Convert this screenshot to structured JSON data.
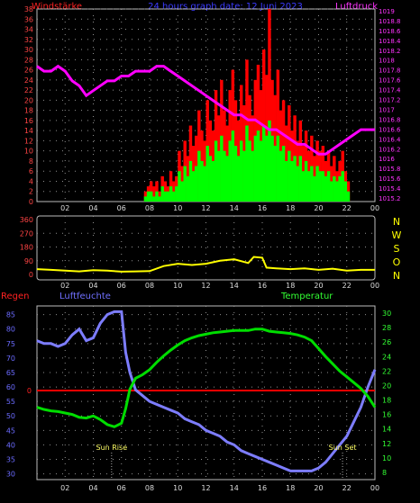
{
  "header": {
    "left_label": "Windstärke",
    "title": "24 hours graph date: 12 Juni 2023",
    "right_label": "Luftdruck"
  },
  "colors": {
    "background": "#000000",
    "grid": "#8f8f8f",
    "wind_gust": "#ff0000",
    "wind_avg": "#00ff00",
    "pressure": "#ff00ff",
    "direction": "#ffff00",
    "humidity": "#7d7dff",
    "temperature": "#00dd00",
    "rain": "#ff0000",
    "left_axis": "#ff4444",
    "humidity_axis": "#6b6bff",
    "temp_axis": "#33ff33",
    "dir_axis": "#ffff00",
    "pressure_axis": "#ff33ff"
  },
  "time_ticks": [
    "02",
    "04",
    "06",
    "08",
    "10",
    "12",
    "14",
    "16",
    "18",
    "20",
    "22",
    "00"
  ],
  "wind_axis_ticks": [
    "0",
    "2",
    "4",
    "6",
    "8",
    "10",
    "12",
    "14",
    "16",
    "18",
    "20",
    "22",
    "24",
    "26",
    "28",
    "30",
    "32",
    "34",
    "36",
    "38"
  ],
  "pressure_axis_ticks": [
    "1015.2",
    "1015.4",
    "1015.6",
    "1015.8",
    "1016",
    "1016.2",
    "1016.4",
    "1016.6",
    "1016.8",
    "1017",
    "1017.2",
    "1017.4",
    "1017.6",
    "1017.8",
    "1018",
    "1018.2",
    "1018.4",
    "1018.6",
    "1018.8",
    "1019"
  ],
  "direction_axis_ticks": [
    "0",
    "90",
    "180",
    "270",
    "360"
  ],
  "direction_labels": [
    "N",
    "W",
    "S",
    "O",
    "N"
  ],
  "bottom_panel": {
    "rain_label": "Regen",
    "humidity_label": "Luftfeuchte",
    "temperature_label": "Temperatur",
    "rain_tick": "0",
    "sunrise_label": "Sun Rise",
    "sunset_label": "Sun Set",
    "humidity_ticks": [
      "30",
      "35",
      "40",
      "45",
      "50",
      "55",
      "60",
      "65",
      "70",
      "75",
      "80",
      "85"
    ],
    "temperature_ticks": [
      "8",
      "10",
      "12",
      "14",
      "16",
      "18",
      "20",
      "22",
      "24",
      "26",
      "28",
      "30"
    ]
  },
  "chart_data": [
    {
      "type": "bar",
      "name": "wind",
      "x_unit": "hour",
      "xlim": [
        0,
        24
      ],
      "ylim": [
        0,
        38
      ],
      "gust_points": [
        [
          7.4,
          0
        ],
        [
          7.6,
          2
        ],
        [
          7.8,
          3
        ],
        [
          8.0,
          4
        ],
        [
          8.2,
          3
        ],
        [
          8.4,
          4
        ],
        [
          8.6,
          2
        ],
        [
          8.8,
          5
        ],
        [
          9.0,
          4
        ],
        [
          9.2,
          3
        ],
        [
          9.4,
          6
        ],
        [
          9.6,
          4
        ],
        [
          9.8,
          5
        ],
        [
          10.0,
          10
        ],
        [
          10.2,
          7
        ],
        [
          10.4,
          12
        ],
        [
          10.6,
          9
        ],
        [
          10.8,
          15
        ],
        [
          11.0,
          11
        ],
        [
          11.2,
          13
        ],
        [
          11.4,
          18
        ],
        [
          11.6,
          14
        ],
        [
          11.8,
          12
        ],
        [
          12.0,
          20
        ],
        [
          12.2,
          16
        ],
        [
          12.4,
          14
        ],
        [
          12.6,
          22
        ],
        [
          12.8,
          17
        ],
        [
          13.0,
          24
        ],
        [
          13.2,
          18
        ],
        [
          13.4,
          15
        ],
        [
          13.6,
          22
        ],
        [
          13.8,
          26
        ],
        [
          14.0,
          20
        ],
        [
          14.2,
          16
        ],
        [
          14.4,
          23
        ],
        [
          14.6,
          19
        ],
        [
          14.8,
          28
        ],
        [
          15.0,
          21
        ],
        [
          15.2,
          17
        ],
        [
          15.4,
          24
        ],
        [
          15.6,
          27
        ],
        [
          15.8,
          22
        ],
        [
          16.0,
          30
        ],
        [
          16.2,
          25
        ],
        [
          16.4,
          38
        ],
        [
          16.6,
          24
        ],
        [
          16.8,
          21
        ],
        [
          17.0,
          26
        ],
        [
          17.2,
          18
        ],
        [
          17.4,
          20
        ],
        [
          17.6,
          15
        ],
        [
          17.8,
          19
        ],
        [
          18.0,
          14
        ],
        [
          18.2,
          17
        ],
        [
          18.4,
          12
        ],
        [
          18.6,
          16
        ],
        [
          18.8,
          11
        ],
        [
          19.0,
          14
        ],
        [
          19.2,
          10
        ],
        [
          19.4,
          13
        ],
        [
          19.6,
          9
        ],
        [
          19.8,
          12
        ],
        [
          20.0,
          10
        ],
        [
          20.2,
          11
        ],
        [
          20.4,
          8
        ],
        [
          20.6,
          10
        ],
        [
          20.8,
          7
        ],
        [
          21.0,
          9
        ],
        [
          21.2,
          6
        ],
        [
          21.4,
          8
        ],
        [
          21.6,
          10
        ],
        [
          21.8,
          6
        ],
        [
          22.0,
          4
        ],
        [
          22.2,
          0
        ]
      ],
      "avg_points": [
        [
          7.4,
          0
        ],
        [
          7.6,
          1
        ],
        [
          7.8,
          2
        ],
        [
          8.0,
          2
        ],
        [
          8.2,
          1
        ],
        [
          8.4,
          2
        ],
        [
          8.6,
          1
        ],
        [
          8.8,
          3
        ],
        [
          9.0,
          2
        ],
        [
          9.2,
          2
        ],
        [
          9.4,
          3
        ],
        [
          9.6,
          2
        ],
        [
          9.8,
          3
        ],
        [
          10.0,
          6
        ],
        [
          10.2,
          4
        ],
        [
          10.4,
          7
        ],
        [
          10.6,
          5
        ],
        [
          10.8,
          8
        ],
        [
          11.0,
          6
        ],
        [
          11.2,
          7
        ],
        [
          11.4,
          10
        ],
        [
          11.6,
          8
        ],
        [
          11.8,
          7
        ],
        [
          12.0,
          11
        ],
        [
          12.2,
          9
        ],
        [
          12.4,
          8
        ],
        [
          12.6,
          12
        ],
        [
          12.8,
          10
        ],
        [
          13.0,
          13
        ],
        [
          13.2,
          10
        ],
        [
          13.4,
          9
        ],
        [
          13.6,
          12
        ],
        [
          13.8,
          14
        ],
        [
          14.0,
          11
        ],
        [
          14.2,
          9
        ],
        [
          14.4,
          12
        ],
        [
          14.6,
          10
        ],
        [
          14.8,
          15
        ],
        [
          15.0,
          12
        ],
        [
          15.2,
          10
        ],
        [
          15.4,
          13
        ],
        [
          15.6,
          14
        ],
        [
          15.8,
          12
        ],
        [
          16.0,
          15
        ],
        [
          16.2,
          13
        ],
        [
          16.4,
          16
        ],
        [
          16.6,
          13
        ],
        [
          16.8,
          11
        ],
        [
          17.0,
          13
        ],
        [
          17.2,
          10
        ],
        [
          17.4,
          11
        ],
        [
          17.6,
          8
        ],
        [
          17.8,
          10
        ],
        [
          18.0,
          8
        ],
        [
          18.2,
          9
        ],
        [
          18.4,
          7
        ],
        [
          18.6,
          9
        ],
        [
          18.8,
          6
        ],
        [
          19.0,
          8
        ],
        [
          19.2,
          6
        ],
        [
          19.4,
          7
        ],
        [
          19.6,
          5
        ],
        [
          19.8,
          7
        ],
        [
          20.0,
          6
        ],
        [
          20.2,
          6
        ],
        [
          20.4,
          5
        ],
        [
          20.6,
          6
        ],
        [
          20.8,
          4
        ],
        [
          21.0,
          5
        ],
        [
          21.2,
          4
        ],
        [
          21.4,
          5
        ],
        [
          21.6,
          6
        ],
        [
          21.8,
          4
        ],
        [
          22.0,
          2
        ],
        [
          22.2,
          0
        ]
      ],
      "pressure_ylim": [
        1015.2,
        1019.0
      ],
      "pressure_points": [
        [
          0.0,
          1017.9
        ],
        [
          0.5,
          1017.8
        ],
        [
          1.0,
          1017.8
        ],
        [
          1.5,
          1017.9
        ],
        [
          2.0,
          1017.8
        ],
        [
          2.5,
          1017.6
        ],
        [
          3.0,
          1017.5
        ],
        [
          3.5,
          1017.3
        ],
        [
          4.0,
          1017.4
        ],
        [
          4.5,
          1017.5
        ],
        [
          5.0,
          1017.6
        ],
        [
          5.5,
          1017.6
        ],
        [
          6.0,
          1017.7
        ],
        [
          6.5,
          1017.7
        ],
        [
          7.0,
          1017.8
        ],
        [
          7.5,
          1017.8
        ],
        [
          8.0,
          1017.8
        ],
        [
          8.5,
          1017.9
        ],
        [
          9.0,
          1017.9
        ],
        [
          9.5,
          1017.8
        ],
        [
          10.0,
          1017.7
        ],
        [
          10.5,
          1017.6
        ],
        [
          11.0,
          1017.5
        ],
        [
          11.5,
          1017.4
        ],
        [
          12.0,
          1017.3
        ],
        [
          12.5,
          1017.2
        ],
        [
          13.0,
          1017.1
        ],
        [
          13.5,
          1017.0
        ],
        [
          14.0,
          1016.9
        ],
        [
          14.5,
          1016.9
        ],
        [
          15.0,
          1016.8
        ],
        [
          15.5,
          1016.8
        ],
        [
          16.0,
          1016.7
        ],
        [
          16.5,
          1016.6
        ],
        [
          17.0,
          1016.6
        ],
        [
          17.5,
          1016.5
        ],
        [
          18.0,
          1016.4
        ],
        [
          18.5,
          1016.3
        ],
        [
          19.0,
          1016.3
        ],
        [
          19.5,
          1016.2
        ],
        [
          20.0,
          1016.1
        ],
        [
          20.5,
          1016.1
        ],
        [
          21.0,
          1016.2
        ],
        [
          21.5,
          1016.3
        ],
        [
          22.0,
          1016.4
        ],
        [
          22.5,
          1016.5
        ],
        [
          23.0,
          1016.6
        ],
        [
          23.5,
          1016.6
        ],
        [
          24.0,
          1016.6
        ]
      ]
    },
    {
      "type": "line",
      "name": "wind_direction",
      "ylim": [
        0,
        360
      ],
      "points": [
        [
          0.0,
          35
        ],
        [
          1.0,
          30
        ],
        [
          2.0,
          25
        ],
        [
          3.0,
          20
        ],
        [
          4.0,
          28
        ],
        [
          5.0,
          25
        ],
        [
          6.0,
          18
        ],
        [
          7.0,
          20
        ],
        [
          8.0,
          22
        ],
        [
          9.0,
          55
        ],
        [
          10.0,
          70
        ],
        [
          11.0,
          62
        ],
        [
          12.0,
          70
        ],
        [
          13.0,
          90
        ],
        [
          14.0,
          100
        ],
        [
          15.0,
          75
        ],
        [
          15.4,
          115
        ],
        [
          16.0,
          110
        ],
        [
          16.3,
          45
        ],
        [
          17.0,
          40
        ],
        [
          18.0,
          35
        ],
        [
          19.0,
          40
        ],
        [
          20.0,
          30
        ],
        [
          21.0,
          38
        ],
        [
          22.0,
          25
        ],
        [
          23.0,
          30
        ],
        [
          24.0,
          30
        ]
      ]
    },
    {
      "type": "line",
      "name": "humidity_temperature",
      "humidity_ylim": [
        28,
        88
      ],
      "temperature_ylim": [
        7,
        31
      ],
      "rain_value": 0,
      "sunrise_hour": 5.3,
      "sunset_hour": 21.7,
      "humidity_points": [
        [
          0.0,
          76
        ],
        [
          0.5,
          75
        ],
        [
          1.0,
          75
        ],
        [
          1.5,
          74
        ],
        [
          2.0,
          75
        ],
        [
          2.5,
          78
        ],
        [
          3.0,
          80
        ],
        [
          3.5,
          76
        ],
        [
          4.0,
          77
        ],
        [
          4.5,
          82
        ],
        [
          5.0,
          85
        ],
        [
          5.5,
          86
        ],
        [
          6.0,
          86
        ],
        [
          6.3,
          72
        ],
        [
          6.6,
          65
        ],
        [
          7.0,
          59
        ],
        [
          7.5,
          57
        ],
        [
          8.0,
          55
        ],
        [
          8.5,
          54
        ],
        [
          9.0,
          53
        ],
        [
          9.5,
          52
        ],
        [
          10.0,
          51
        ],
        [
          10.5,
          49
        ],
        [
          11.0,
          48
        ],
        [
          11.5,
          47
        ],
        [
          12.0,
          45
        ],
        [
          12.5,
          44
        ],
        [
          13.0,
          43
        ],
        [
          13.5,
          41
        ],
        [
          14.0,
          40
        ],
        [
          14.5,
          38
        ],
        [
          15.0,
          37
        ],
        [
          15.5,
          36
        ],
        [
          16.0,
          35
        ],
        [
          16.5,
          34
        ],
        [
          17.0,
          33
        ],
        [
          17.5,
          32
        ],
        [
          18.0,
          31
        ],
        [
          18.5,
          31
        ],
        [
          19.0,
          31
        ],
        [
          19.5,
          31
        ],
        [
          20.0,
          32
        ],
        [
          20.5,
          34
        ],
        [
          21.0,
          37
        ],
        [
          21.5,
          40
        ],
        [
          22.0,
          43
        ],
        [
          22.5,
          48
        ],
        [
          23.0,
          53
        ],
        [
          23.5,
          60
        ],
        [
          24.0,
          66
        ]
      ],
      "temperature_points": [
        [
          0.0,
          17.0
        ],
        [
          0.5,
          16.7
        ],
        [
          1.0,
          16.5
        ],
        [
          1.5,
          16.4
        ],
        [
          2.0,
          16.2
        ],
        [
          2.5,
          16.0
        ],
        [
          3.0,
          15.6
        ],
        [
          3.5,
          15.5
        ],
        [
          4.0,
          15.8
        ],
        [
          4.5,
          15.3
        ],
        [
          5.0,
          14.6
        ],
        [
          5.5,
          14.3
        ],
        [
          6.0,
          14.8
        ],
        [
          6.3,
          16.8
        ],
        [
          6.6,
          19.5
        ],
        [
          7.0,
          21.0
        ],
        [
          7.5,
          21.5
        ],
        [
          8.0,
          22.2
        ],
        [
          8.5,
          23.2
        ],
        [
          9.0,
          24.1
        ],
        [
          9.5,
          24.9
        ],
        [
          10.0,
          25.6
        ],
        [
          10.5,
          26.2
        ],
        [
          11.0,
          26.6
        ],
        [
          11.5,
          26.9
        ],
        [
          12.0,
          27.1
        ],
        [
          12.5,
          27.3
        ],
        [
          13.0,
          27.4
        ],
        [
          13.5,
          27.5
        ],
        [
          14.0,
          27.6
        ],
        [
          14.5,
          27.6
        ],
        [
          15.0,
          27.6
        ],
        [
          15.5,
          27.8
        ],
        [
          16.0,
          27.8
        ],
        [
          16.5,
          27.5
        ],
        [
          17.0,
          27.4
        ],
        [
          17.5,
          27.3
        ],
        [
          18.0,
          27.2
        ],
        [
          18.5,
          27.0
        ],
        [
          19.0,
          26.7
        ],
        [
          19.5,
          26.2
        ],
        [
          20.0,
          25.1
        ],
        [
          20.5,
          24.0
        ],
        [
          21.0,
          23.0
        ],
        [
          21.5,
          22.0
        ],
        [
          22.0,
          21.2
        ],
        [
          22.5,
          20.4
        ],
        [
          23.0,
          19.6
        ],
        [
          23.5,
          18.5
        ],
        [
          24.0,
          17.0
        ]
      ]
    }
  ]
}
